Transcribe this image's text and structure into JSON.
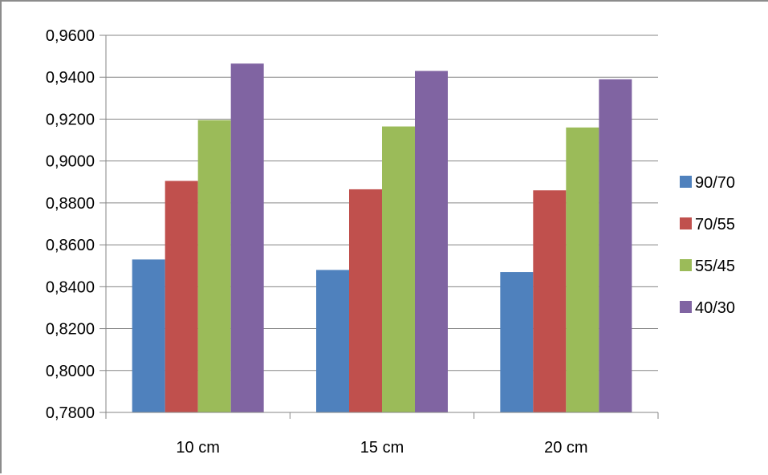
{
  "chart_data": {
    "type": "bar",
    "categories": [
      "10 cm",
      "15 cm",
      "20 cm"
    ],
    "series": [
      {
        "name": "90/70",
        "color": "#4f81bd",
        "values": [
          0.853,
          0.848,
          0.847
        ]
      },
      {
        "name": "70/55",
        "color": "#c0504d",
        "values": [
          0.8905,
          0.8865,
          0.886
        ]
      },
      {
        "name": "55/45",
        "color": "#9bbb59",
        "values": [
          0.9195,
          0.9165,
          0.916
        ]
      },
      {
        "name": "40/30",
        "color": "#8064a2",
        "values": [
          0.9465,
          0.943,
          0.939
        ]
      }
    ],
    "ylim": [
      0.78,
      0.96
    ],
    "yticks": [
      "0,7800",
      "0,8000",
      "0,8200",
      "0,8400",
      "0,8600",
      "0,8800",
      "0,9000",
      "0,9200",
      "0,9400",
      "0,9600"
    ],
    "ytick_values": [
      0.78,
      0.8,
      0.82,
      0.84,
      0.86,
      0.88,
      0.9,
      0.92,
      0.94,
      0.96
    ],
    "grid": true,
    "legend_position": "right",
    "gridline_color": "#868686"
  }
}
